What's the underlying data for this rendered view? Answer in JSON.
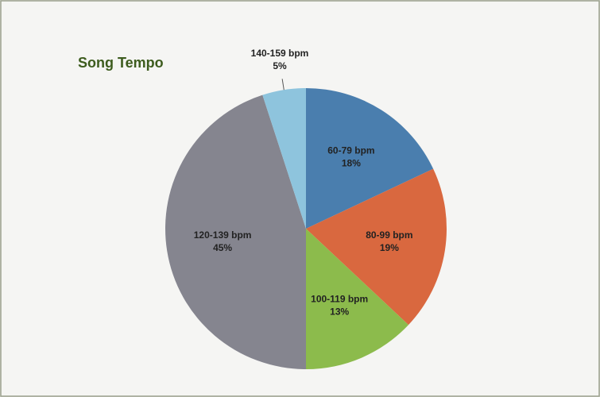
{
  "chart_data": {
    "type": "pie",
    "title": "Song Tempo",
    "categories": [
      "60-79 bpm",
      "80-99 bpm",
      "100-119 bpm",
      "120-139 bpm",
      "140-159 bpm"
    ],
    "values": [
      18,
      19,
      13,
      45,
      5
    ],
    "value_labels": [
      "18%",
      "19%",
      "13%",
      "45%",
      "5%"
    ],
    "colors": [
      "#4a7eae",
      "#d9683f",
      "#8cbb4c",
      "#85858f",
      "#8ec4dd"
    ]
  }
}
